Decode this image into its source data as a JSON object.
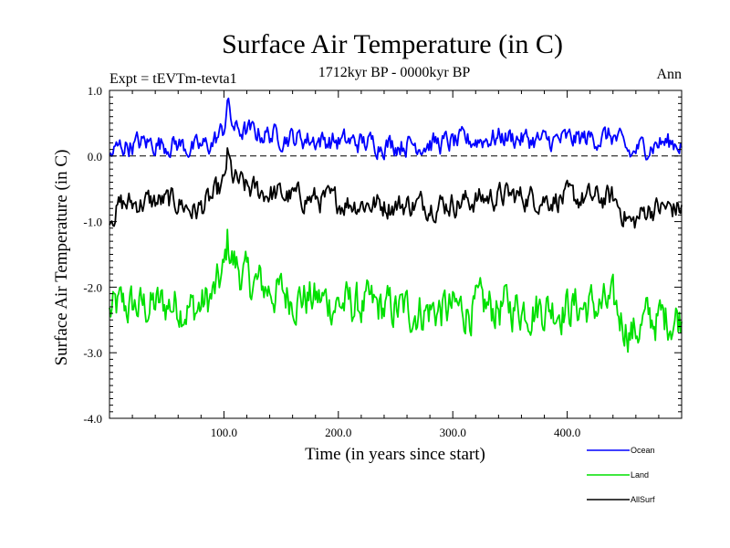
{
  "chart_data": {
    "type": "line",
    "title": "Surface Air Temperature (in C)",
    "subtitle": "1712kyr BP - 0000kyr BP",
    "left_label": "Expt = tEVTm-tevta1",
    "right_label": "Ann",
    "xlabel": "Time (in years since start)",
    "ylabel": "Surface Air Temperature (in C)",
    "xlim": [
      0,
      500
    ],
    "ylim": [
      -4,
      1
    ],
    "xticks": [
      100,
      200,
      300,
      400
    ],
    "xtick_labels": [
      "100.0",
      "200.0",
      "300.0",
      "400.0"
    ],
    "yticks": [
      1,
      0,
      -1,
      -2,
      -3,
      -4
    ],
    "ytick_labels": [
      "1.0",
      "0.0",
      "-1.0",
      "-2.0",
      "-3.0",
      "-4.0"
    ],
    "zero_line": true,
    "series_sampling": "control points, linearly interpolated with annual noise in the drawing script",
    "series": [
      {
        "name": "Ocean",
        "color": "#0000ff",
        "noise": 0.14,
        "x": [
          0,
          10,
          30,
          60,
          75,
          90,
          100,
          103,
          106,
          110,
          130,
          160,
          200,
          250,
          300,
          345,
          380,
          440,
          457,
          460,
          480,
          500
        ],
        "y": [
          0.0,
          0.15,
          0.2,
          0.18,
          0.1,
          0.2,
          0.4,
          0.85,
          0.55,
          0.4,
          0.35,
          0.28,
          0.22,
          0.18,
          0.2,
          0.3,
          0.22,
          0.3,
          0.0,
          0.1,
          0.2,
          0.2
        ]
      },
      {
        "name": "Land",
        "color": "#00e000",
        "noise": 0.28,
        "x": [
          0,
          10,
          30,
          60,
          75,
          90,
          100,
          103,
          108,
          120,
          150,
          200,
          250,
          300,
          350,
          380,
          440,
          457,
          470,
          500
        ],
        "y": [
          -2.4,
          -2.3,
          -2.3,
          -2.25,
          -2.35,
          -2.15,
          -1.8,
          -1.3,
          -1.6,
          -1.9,
          -2.1,
          -2.25,
          -2.35,
          -2.35,
          -2.3,
          -2.3,
          -2.3,
          -2.7,
          -2.5,
          -2.45
        ]
      },
      {
        "name": "AllSurf",
        "color": "#000000",
        "noise": 0.16,
        "x": [
          0,
          10,
          30,
          60,
          75,
          90,
          100,
          103,
          108,
          120,
          150,
          200,
          250,
          300,
          345,
          380,
          440,
          457,
          470,
          500
        ],
        "y": [
          -0.9,
          -0.75,
          -0.7,
          -0.7,
          -0.85,
          -0.65,
          -0.45,
          0.0,
          -0.35,
          -0.5,
          -0.6,
          -0.7,
          -0.75,
          -0.72,
          -0.6,
          -0.65,
          -0.65,
          -1.05,
          -0.8,
          -0.8
        ]
      }
    ],
    "legend": [
      {
        "name": "Ocean",
        "color": "#0000ff"
      },
      {
        "name": "Land",
        "color": "#00e000"
      },
      {
        "name": "AllSurf",
        "color": "#000000"
      }
    ],
    "legend_position": "bottom-right"
  }
}
